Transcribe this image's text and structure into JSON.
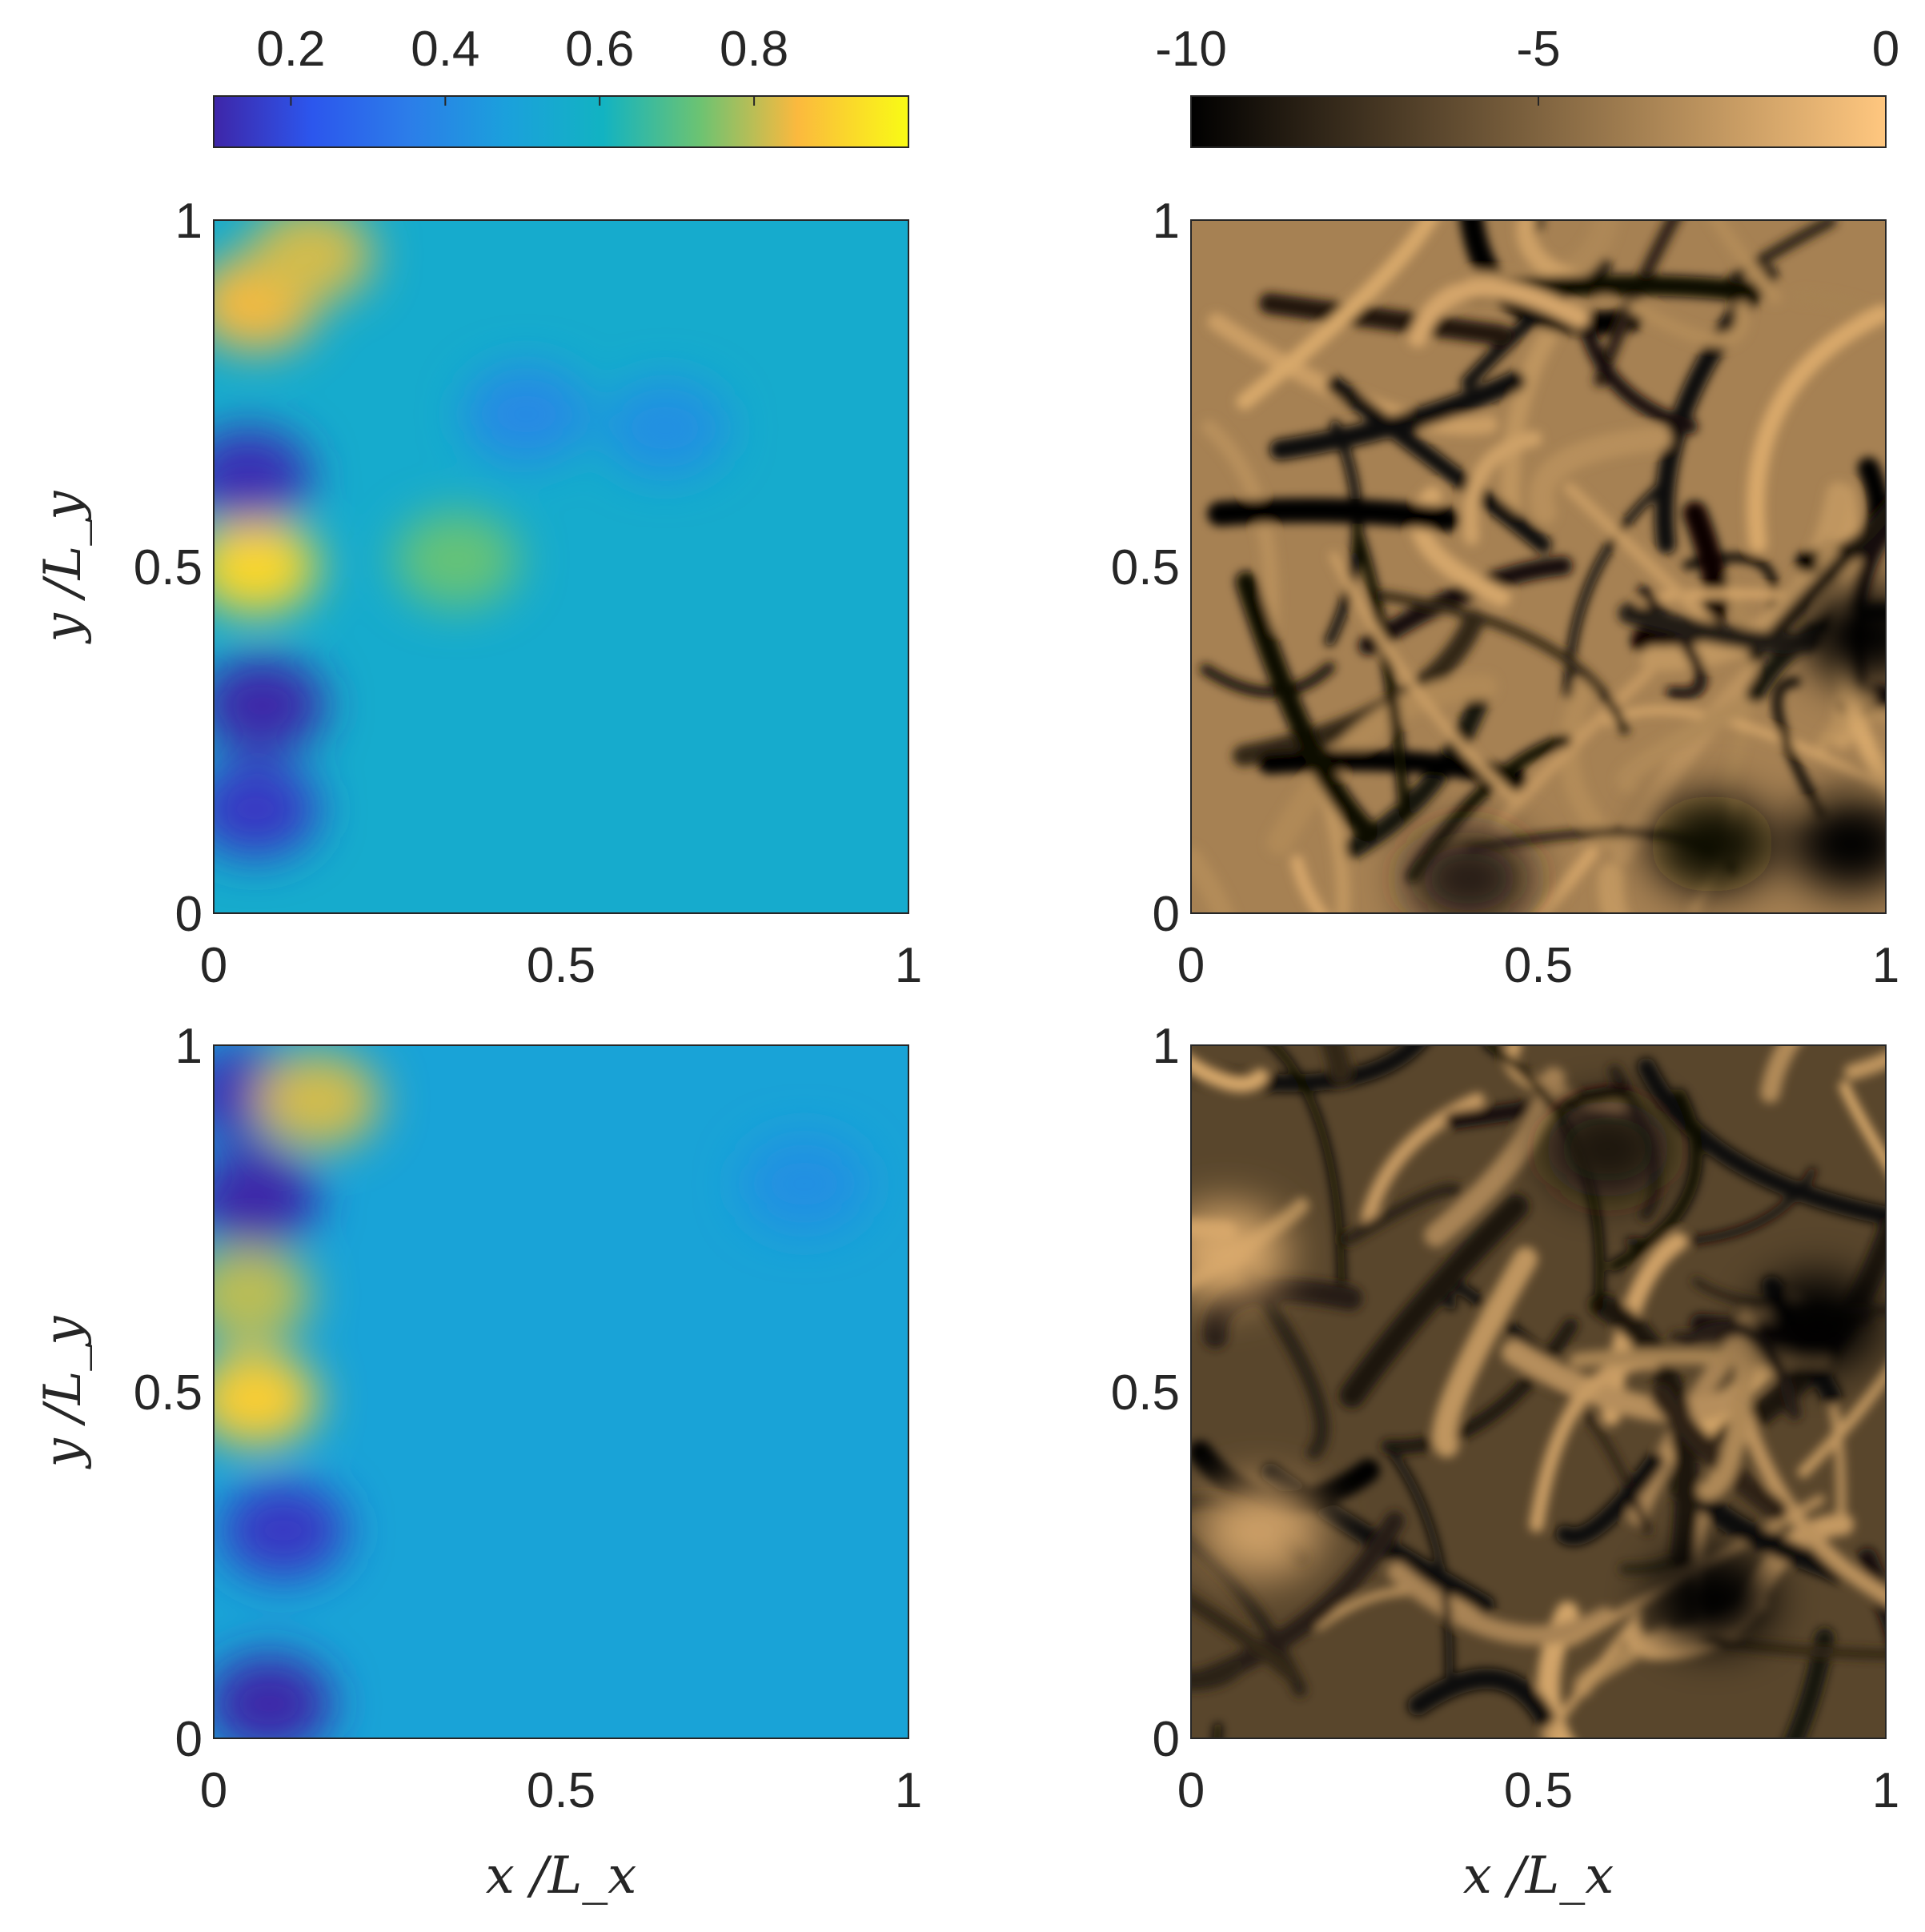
{
  "figure": {
    "xlabel": "x /L_x",
    "ylabel": "y /L_y"
  },
  "chart_data": [
    {
      "type": "heatmap",
      "panel": "top-left",
      "colormap": "parula",
      "clim": [
        0.1,
        1.0
      ],
      "colorbar": {
        "location": "top",
        "ticks": [
          "0.2",
          "0.4",
          "0.6",
          "0.8"
        ]
      },
      "xlim": [
        0,
        1
      ],
      "ylim": [
        0,
        1
      ],
      "xticks": [
        "0",
        "0.5",
        "1"
      ],
      "yticks": [
        "0",
        "0.5",
        "1"
      ],
      "xlabel": "",
      "ylabel": "y /L_y",
      "background_value": 0.55,
      "features": [
        {
          "x": 0.06,
          "y": 0.88,
          "value": 0.85
        },
        {
          "x": 0.14,
          "y": 0.95,
          "value": 0.82
        },
        {
          "x": 0.06,
          "y": 0.5,
          "value": 0.92
        },
        {
          "x": 0.35,
          "y": 0.51,
          "value": 0.72
        },
        {
          "x": 0.05,
          "y": 0.63,
          "value": 0.12
        },
        {
          "x": 0.07,
          "y": 0.3,
          "value": 0.1
        },
        {
          "x": 0.06,
          "y": 0.15,
          "value": 0.15
        },
        {
          "x": 0.45,
          "y": 0.72,
          "value": 0.4
        },
        {
          "x": 0.65,
          "y": 0.7,
          "value": 0.42
        }
      ]
    },
    {
      "type": "heatmap",
      "panel": "top-right",
      "colormap": "copper",
      "clim": [
        -10,
        0
      ],
      "colorbar": {
        "location": "top",
        "ticks": [
          "-10",
          "-5",
          "0"
        ]
      },
      "xlim": [
        0,
        1
      ],
      "ylim": [
        0,
        1
      ],
      "xticks": [
        "0",
        "0.5",
        "1"
      ],
      "yticks": [
        "0",
        "0.5",
        "1"
      ],
      "xlabel": "",
      "ylabel": "",
      "background_value": -3.5,
      "features": [
        {
          "x": 0.97,
          "y": 0.4,
          "value": -10
        },
        {
          "x": 0.75,
          "y": 0.1,
          "value": -9.5
        },
        {
          "x": 0.4,
          "y": 0.05,
          "value": -8.5
        },
        {
          "x": 0.95,
          "y": 0.1,
          "value": -10
        }
      ]
    },
    {
      "type": "heatmap",
      "panel": "bottom-left",
      "colormap": "parula",
      "clim": [
        0.1,
        1.0
      ],
      "xlim": [
        0,
        1
      ],
      "ylim": [
        0,
        1
      ],
      "xticks": [
        "0",
        "0.5",
        "1"
      ],
      "yticks": [
        "0",
        "0.5",
        "1"
      ],
      "xlabel": "x /L_x",
      "ylabel": "y /L_y",
      "background_value": 0.5,
      "features": [
        {
          "x": 0.06,
          "y": 0.78,
          "value": 0.1
        },
        {
          "x": 0.05,
          "y": 0.93,
          "value": 0.12
        },
        {
          "x": 0.15,
          "y": 0.92,
          "value": 0.82
        },
        {
          "x": 0.06,
          "y": 0.49,
          "value": 0.9
        },
        {
          "x": 0.05,
          "y": 0.64,
          "value": 0.8
        },
        {
          "x": 0.1,
          "y": 0.3,
          "value": 0.15
        },
        {
          "x": 0.08,
          "y": 0.05,
          "value": 0.1
        },
        {
          "x": 0.85,
          "y": 0.8,
          "value": 0.42
        }
      ]
    },
    {
      "type": "heatmap",
      "panel": "bottom-right",
      "colormap": "copper",
      "clim": [
        -10,
        0
      ],
      "xlim": [
        0,
        1
      ],
      "ylim": [
        0,
        1
      ],
      "xticks": [
        "0",
        "0.5",
        "1"
      ],
      "yticks": [
        "0",
        "0.5",
        "1"
      ],
      "xlabel": "x /L_x",
      "ylabel": "",
      "background_value": -6.5,
      "features": [
        {
          "x": 0.05,
          "y": 0.7,
          "value": -1.5
        },
        {
          "x": 0.1,
          "y": 0.3,
          "value": -2.0
        },
        {
          "x": 0.9,
          "y": 0.6,
          "value": -10
        },
        {
          "x": 0.75,
          "y": 0.2,
          "value": -10
        },
        {
          "x": 0.6,
          "y": 0.85,
          "value": -9
        }
      ]
    }
  ]
}
